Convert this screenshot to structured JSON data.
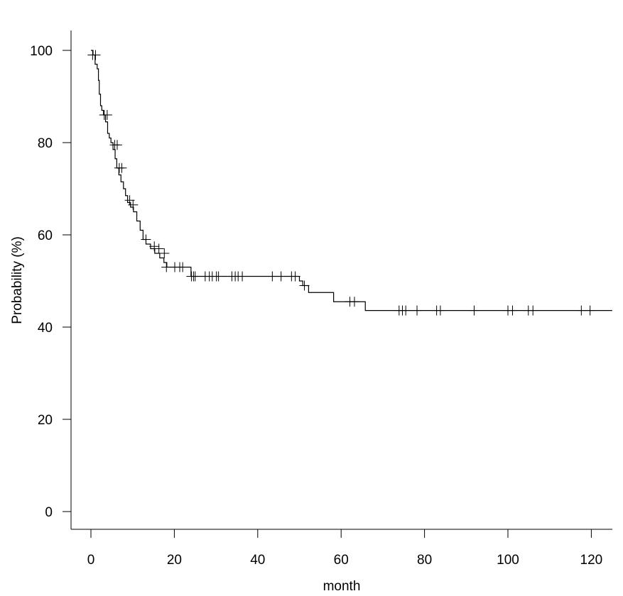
{
  "chart_data": {
    "type": "line",
    "title": "",
    "xlabel": "month",
    "ylabel": "Probability (%)",
    "xlim": [
      -5,
      125
    ],
    "ylim": [
      -4,
      104
    ],
    "x_ticks": [
      0,
      20,
      40,
      60,
      80,
      100,
      120
    ],
    "y_ticks": [
      0,
      20,
      40,
      60,
      80,
      100
    ],
    "x_tick_labels": [
      "0",
      "20",
      "40",
      "60",
      "80",
      "100",
      "120"
    ],
    "y_tick_labels": [
      "0",
      "20",
      "40",
      "60",
      "80",
      "100"
    ],
    "grid": false,
    "line_color": "#000000",
    "series": [
      {
        "step_curve": {
          "x": [
            0,
            0.5,
            1.0,
            1.5,
            1.8,
            2.0,
            2.3,
            2.6,
            3.0,
            3.5,
            4.0,
            4.4,
            4.8,
            5.3,
            5.8,
            6.2,
            6.7,
            7.2,
            7.8,
            8.3,
            8.8,
            9.5,
            10.2,
            11.0,
            11.8,
            12.5,
            13.2,
            14.3,
            15.3,
            16.5,
            17.5,
            18.2,
            24.0,
            50.0,
            50.8,
            52.2,
            58.2,
            65.8,
            125
          ],
          "y": [
            100,
            99,
            97,
            96,
            93.5,
            90.5,
            88,
            87,
            86,
            84.5,
            82,
            81,
            80,
            78.5,
            76.5,
            74.5,
            73,
            71.5,
            70,
            68.5,
            67,
            66,
            65,
            63,
            61,
            59,
            58,
            57,
            56,
            55,
            54,
            53,
            51,
            50,
            49,
            47.5,
            45.5,
            43.6,
            43.6
          ]
        },
        "censored": {
          "x": [
            0.4,
            1.1,
            3.2,
            3.9,
            5.7,
            6.3,
            6.8,
            7.4,
            9.3,
            10.1,
            13.2,
            15.2,
            16.3,
            17.6,
            18.1,
            20.1,
            21.3,
            22.0,
            24.1,
            24.6,
            25.0,
            27.4,
            28.4,
            29.1,
            30.1,
            30.6,
            33.8,
            34.6,
            35.3,
            36.3,
            43.5,
            45.6,
            48.1,
            49.0,
            51.2,
            62.1,
            63.2,
            73.9,
            74.7,
            75.5,
            78.2,
            82.9,
            83.8,
            91.9,
            100.0,
            101.1,
            104.9,
            106.0,
            117.6,
            119.7
          ],
          "y": [
            99,
            99,
            86,
            86,
            79.5,
            79.5,
            74.5,
            74.5,
            67.5,
            66.5,
            59,
            57.5,
            57,
            56,
            53,
            53,
            53,
            53,
            51,
            51,
            51,
            51,
            51,
            51,
            51,
            51,
            51,
            51,
            51,
            51,
            51,
            51,
            51,
            51,
            49,
            45.5,
            45.5,
            43.6,
            43.6,
            43.6,
            43.6,
            43.6,
            43.6,
            43.6,
            43.6,
            43.6,
            43.6,
            43.6,
            43.6,
            43.6
          ]
        }
      }
    ]
  }
}
